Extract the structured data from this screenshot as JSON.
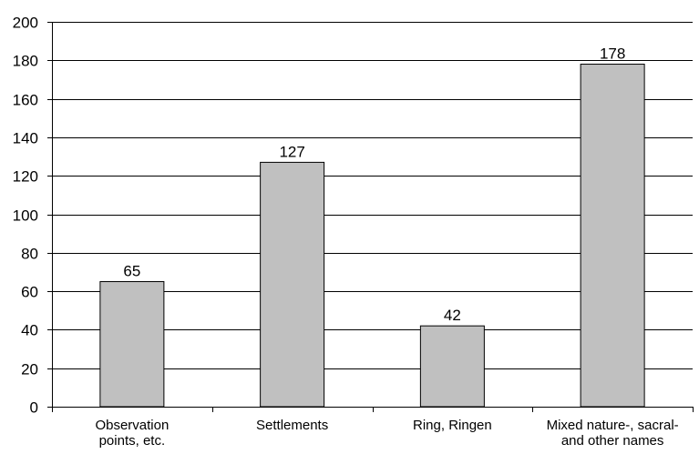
{
  "chart_data": {
    "type": "bar",
    "categories": [
      [
        "Observation",
        "points, etc."
      ],
      [
        "Settlements"
      ],
      [
        "Ring, Ringen"
      ],
      [
        "Mixed nature-, sacral-",
        "and other names"
      ]
    ],
    "values": [
      65,
      127,
      42,
      178
    ],
    "data_labels": [
      "65",
      "127",
      "42",
      "178"
    ],
    "ylim": [
      0,
      200
    ],
    "y_ticks": [
      "0",
      "20",
      "40",
      "60",
      "80",
      "100",
      "120",
      "140",
      "160",
      "180",
      "200"
    ],
    "grid": true,
    "bar_color": "#c0c0c0",
    "title": "",
    "xlabel": "",
    "ylabel": ""
  }
}
